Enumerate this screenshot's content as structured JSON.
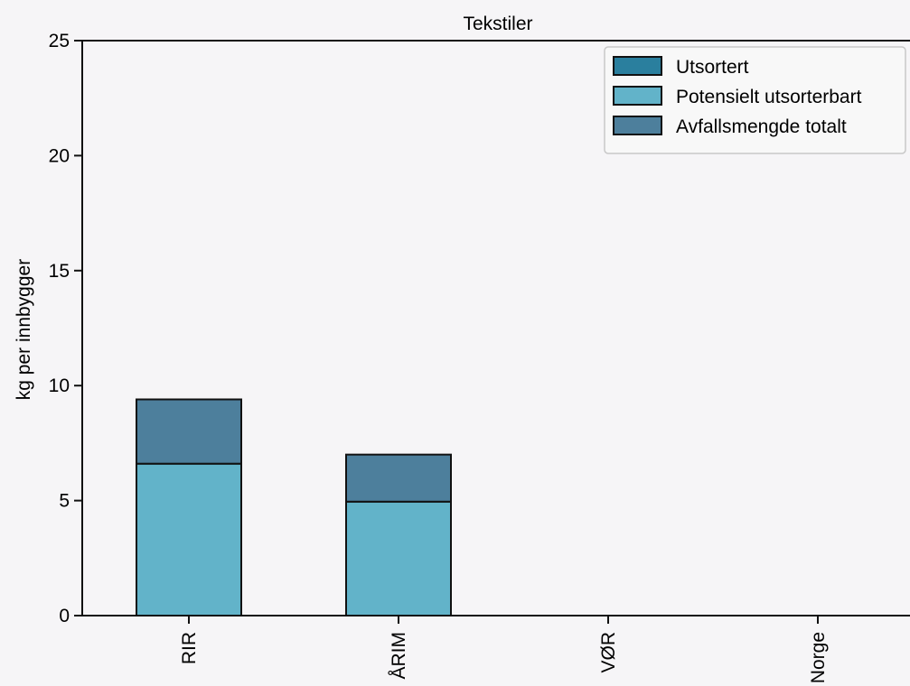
{
  "chart_data": {
    "type": "bar",
    "stacked": true,
    "title": "Tekstiler",
    "xlabel": "",
    "ylabel": "kg per innbygger",
    "ylim": [
      0,
      25
    ],
    "yticks": [
      0,
      5,
      10,
      15,
      20,
      25
    ],
    "categories": [
      "RIR",
      "ÅRIM",
      "VØR",
      "Norge"
    ],
    "series": [
      {
        "name": "Utsortert",
        "values": [
          0,
          0,
          0,
          0
        ],
        "color": "#2a7f9e"
      },
      {
        "name": "Potensielt utsorterbart",
        "values": [
          6.6,
          4.95,
          0,
          0
        ],
        "color": "#62b3c9"
      },
      {
        "name": "Avfallsmengde totalt",
        "values": [
          9.4,
          7.0,
          0,
          0
        ],
        "color": "#4d7f9c"
      }
    ],
    "grid": false,
    "legend": "top-right"
  }
}
